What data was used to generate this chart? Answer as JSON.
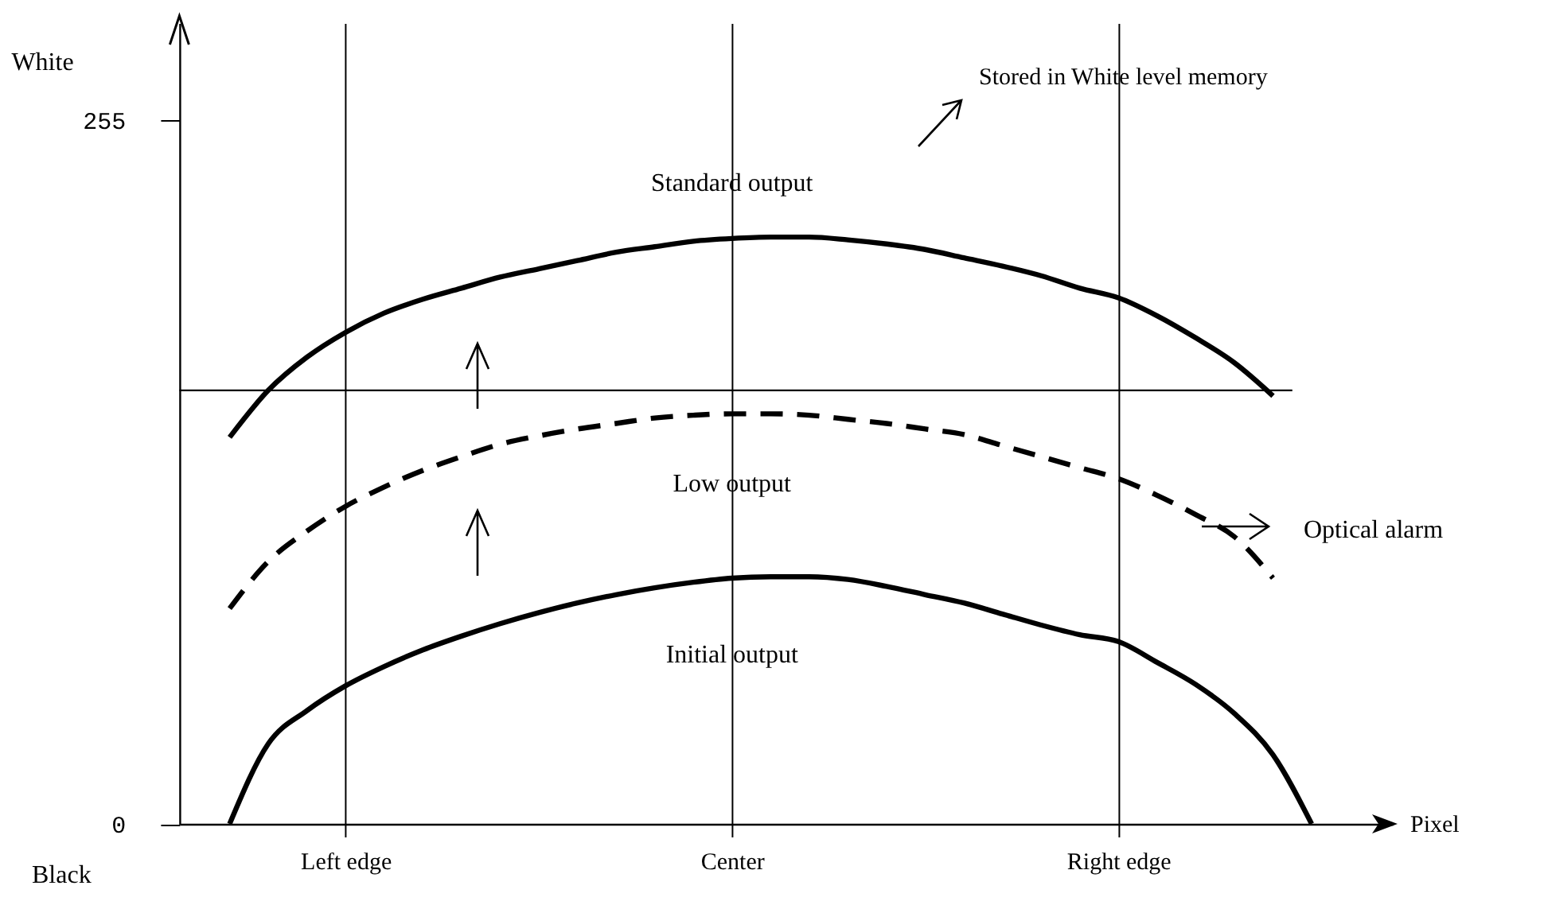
{
  "chart_data": {
    "type": "line",
    "ylabel": "White",
    "categories": [
      null,
      null,
      null,
      "Left edge",
      null,
      null,
      null,
      null,
      null,
      null,
      null,
      null,
      null,
      "Center",
      null,
      null,
      null,
      null,
      null,
      null,
      null,
      null,
      null,
      "Right edge",
      null,
      null,
      null,
      null,
      null
    ],
    "ylim": [
      0,
      290
    ],
    "yticks": [
      0,
      255
    ],
    "grid": "x",
    "ref_lines": [
      {
        "axis": "y",
        "value": 157
      }
    ],
    "annotations": [
      "Stored in White level memory",
      "Optical alarm",
      "Black",
      "Pixel"
    ],
    "series": [
      {
        "name": "Standard output",
        "color": "#000000",
        "line_style": "solid",
        "values": [
          140,
          157,
          169,
          178,
          185,
          190,
          194,
          198,
          201,
          204,
          207,
          209,
          211,
          212,
          212.5,
          212.5,
          211.5,
          210,
          208,
          205,
          202,
          198.5,
          194,
          190.5,
          184,
          176,
          167,
          155,
          null
        ]
      },
      {
        "name": "Low output",
        "color": "#000000",
        "line_style": "dashed",
        "values": [
          78,
          95,
          106,
          115,
          122,
          128,
          133,
          137.5,
          140.5,
          143,
          145,
          147,
          148,
          148.5,
          148.5,
          148,
          146.5,
          145,
          143,
          141,
          137,
          133,
          129,
          125,
          119,
          112,
          104,
          89,
          null
        ]
      },
      {
        "name": "Initial output",
        "color": "#000000",
        "line_style": "solid",
        "values": [
          0,
          29,
          41,
          50,
          57,
          63,
          68,
          72.5,
          76.5,
          80,
          83,
          85.5,
          87.5,
          89,
          89.5,
          89.5,
          88.5,
          86,
          83,
          80,
          76,
          72,
          68.5,
          66,
          58.5,
          50.5,
          40,
          25,
          0
        ]
      }
    ]
  }
}
